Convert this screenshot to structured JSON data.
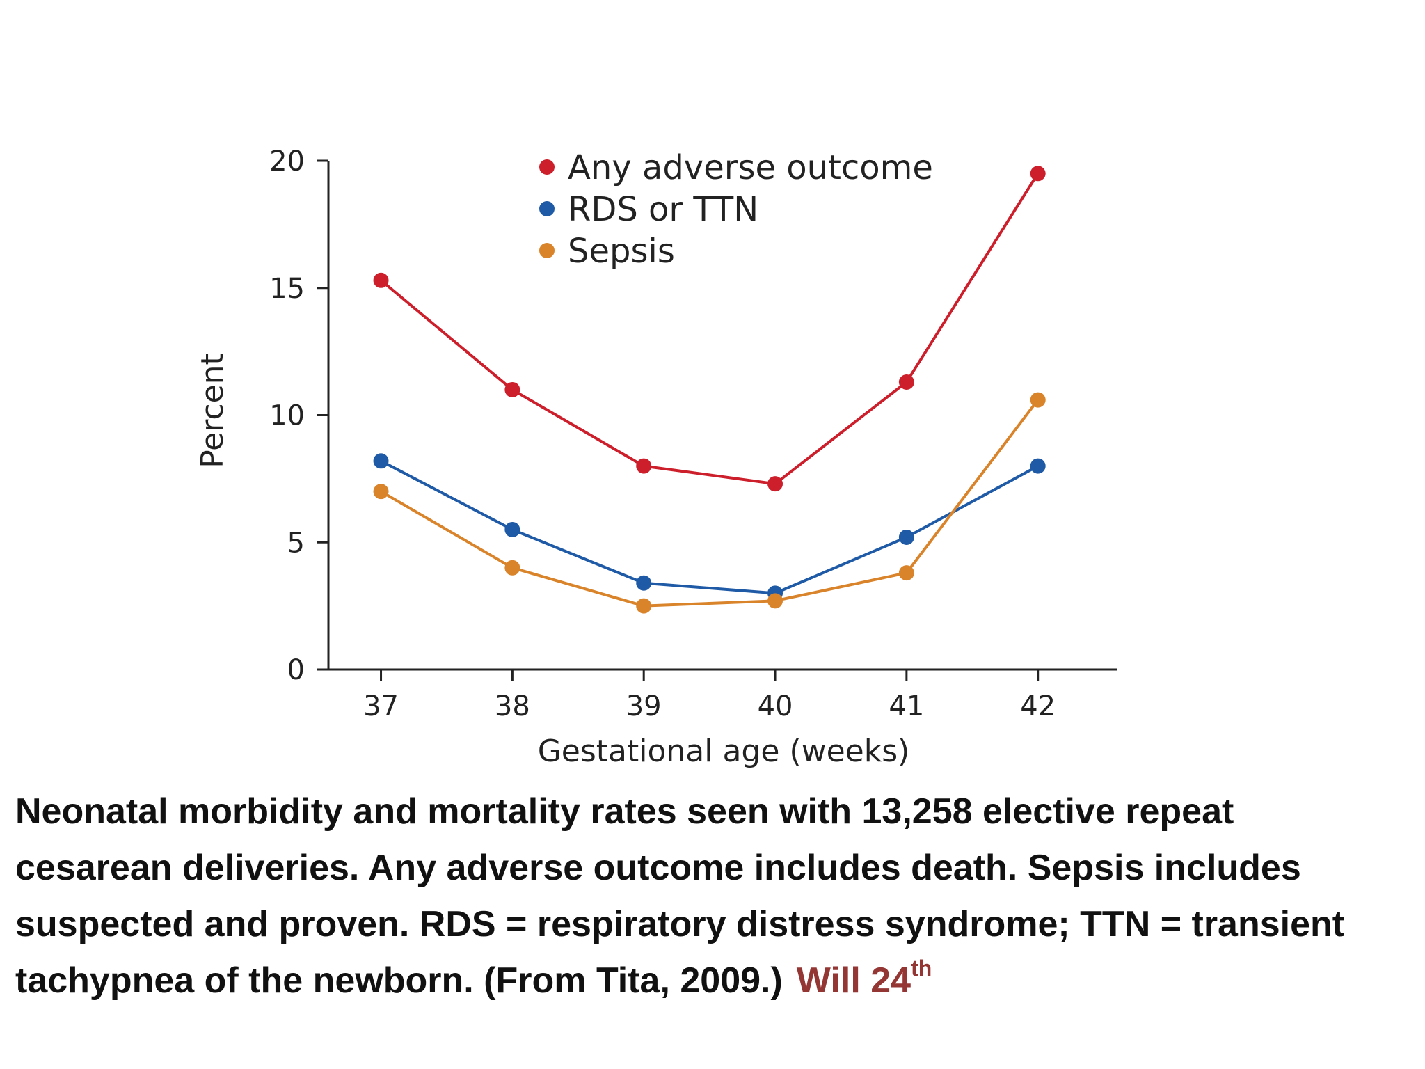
{
  "chart_data": {
    "type": "line",
    "x": [
      37,
      38,
      39,
      40,
      41,
      42
    ],
    "xlabel": "Gestational age (weeks)",
    "ylabel": "Percent",
    "xlim": [
      36.6,
      42.6
    ],
    "ylim": [
      0,
      20
    ],
    "yticks": [
      0,
      5,
      10,
      15,
      20
    ],
    "grid": false,
    "legend_position": "top",
    "series": [
      {
        "name": "Any adverse outcome",
        "color": "#cc1f2b",
        "values": [
          15.3,
          11.0,
          8.0,
          7.3,
          11.3,
          19.5
        ]
      },
      {
        "name": "RDS or TTN",
        "color": "#1f5aa6",
        "values": [
          8.2,
          5.5,
          3.4,
          3.0,
          5.2,
          8.0
        ]
      },
      {
        "name": "Sepsis",
        "color": "#d9832a",
        "values": [
          7.0,
          4.0,
          2.5,
          2.7,
          3.8,
          10.6
        ]
      }
    ]
  },
  "caption": {
    "text": "Neonatal morbidity and mortality rates seen with 13,258 elective repeat cesarean deliveries. Any adverse outcome includes death. Sepsis includes suspected and proven. RDS = respiratory distress syndrome; TTN = transient tachypnea of the newborn. (From Tita, 2009.)",
    "note": "Will 24",
    "note_sup": "th"
  }
}
